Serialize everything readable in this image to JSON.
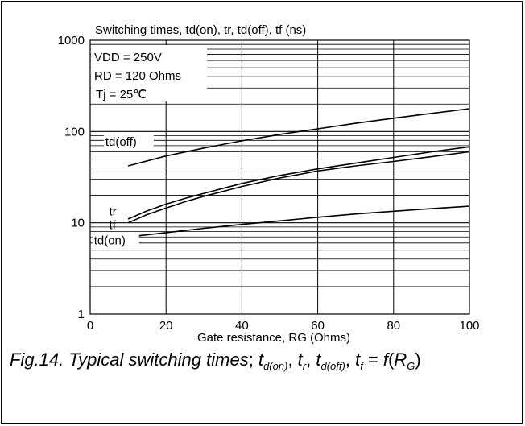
{
  "chart_data": {
    "type": "line",
    "title": "Switching times, td(on), tr, td(off), tf (ns)",
    "xlabel": "Gate resistance, RG (Ohms)",
    "ylabel": "",
    "xlim": [
      0,
      100
    ],
    "ylim": [
      1,
      1000
    ],
    "yscale": "log",
    "grid": true,
    "xticks": [
      "0",
      "20",
      "40",
      "60",
      "80",
      "100"
    ],
    "yticks": [
      "1",
      "10",
      "100",
      "1000"
    ],
    "annotations": [
      "VDD = 250V",
      "RD = 120 Ohms",
      "Tj = 25℃"
    ],
    "series": [
      {
        "name": "td(off)",
        "x": [
          10,
          20,
          30,
          40,
          50,
          60,
          70,
          80,
          90,
          100
        ],
        "y": [
          42,
          54,
          66,
          79,
          93,
          107,
          123,
          140,
          158,
          178
        ]
      },
      {
        "name": "tr",
        "x": [
          10,
          15,
          20,
          25,
          30,
          40,
          50,
          60,
          70,
          80,
          90,
          100
        ],
        "y": [
          11,
          13.5,
          16,
          18.5,
          21,
          27,
          33,
          39,
          45,
          52,
          60,
          68
        ]
      },
      {
        "name": "tf",
        "x": [
          10,
          15,
          20,
          25,
          30,
          40,
          50,
          60,
          70,
          80,
          90,
          100
        ],
        "y": [
          10,
          12.3,
          14.5,
          17,
          19.5,
          25,
          31,
          37,
          42,
          47,
          53,
          60
        ]
      },
      {
        "name": "td(on)",
        "x": [
          10,
          20,
          30,
          40,
          50,
          60,
          70,
          80,
          90,
          100
        ],
        "y": [
          7,
          7.8,
          8.7,
          9.6,
          10.5,
          11.5,
          12.5,
          13.4,
          14.3,
          15.2
        ]
      }
    ],
    "series_labels": [
      "td(off)",
      "tr",
      "tf",
      "td(on)"
    ]
  },
  "caption": {
    "prefix": "Fig.14.  Typical switching times",
    "sep": ";",
    "t": "t",
    "sub_don": "d(on)",
    "sub_r": "r",
    "sub_doff": "d(off)",
    "sub_f": "f",
    "eq": " = ",
    "f": "f",
    "R": "R",
    "sub_G": "G",
    "comma": ", "
  }
}
